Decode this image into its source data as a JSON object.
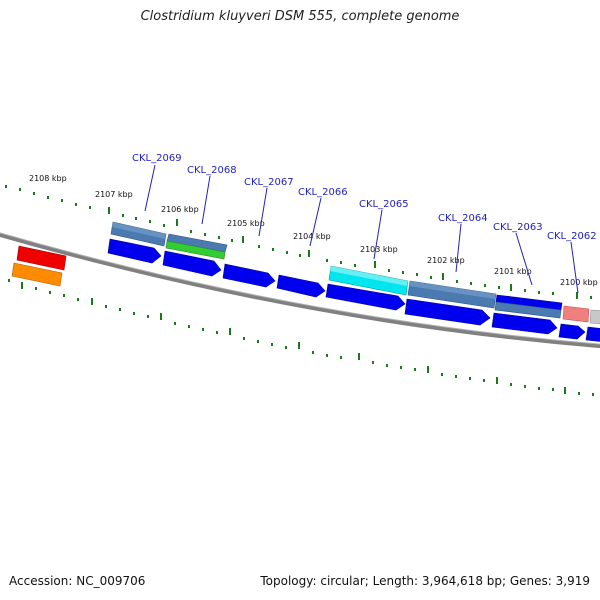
{
  "title": "Clostridium kluyveri DSM 555, complete genome",
  "footer": {
    "accession": "Accession: NC_009706",
    "summary": "Topology: circular; Length: 3,964,618 bp; Genes: 3,919"
  },
  "scale_labels": [
    "2108 kbp",
    "2107 kbp",
    "2106 kbp",
    "2105 kbp",
    "2104 kbp",
    "2103 kbp",
    "2102 kbp",
    "2101 kbp",
    "2100 kbp"
  ],
  "gene_labels": [
    "CKL_2069",
    "CKL_2068",
    "CKL_2067",
    "CKL_2066",
    "CKL_2065",
    "CKL_2064",
    "CKL_2063",
    "CKL_2062"
  ],
  "colors": {
    "backbone": "#808080",
    "tick": "#1a7a1a",
    "cds": "#0000ee",
    "red": "#ee0000",
    "orange": "#ff8c00",
    "steel": "#4a7ab0",
    "green": "#33cc33",
    "cyan": "#00e5ee",
    "pink": "#f08080",
    "grey": "#c8c8c8",
    "label": "#2222bb"
  }
}
